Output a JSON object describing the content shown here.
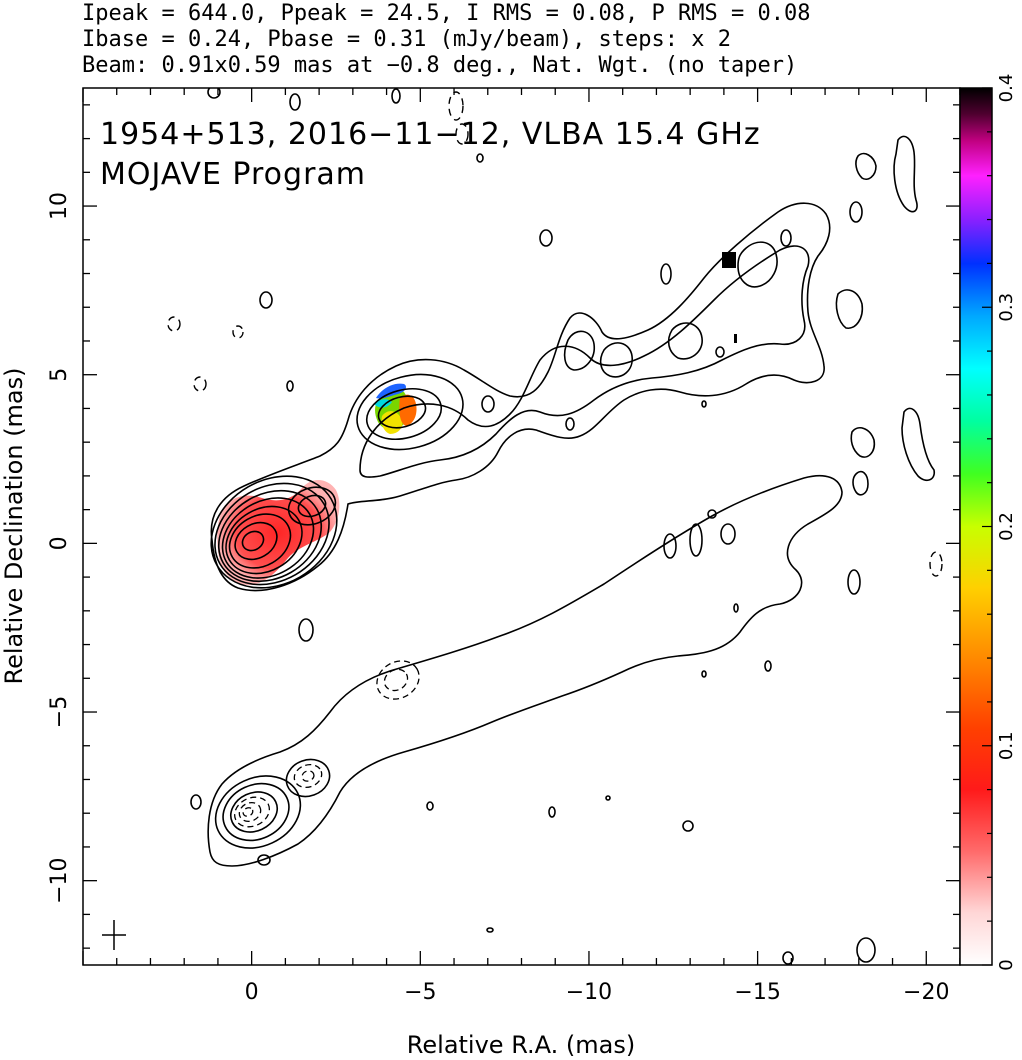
{
  "header": {
    "line1": "Ipeak = 644.0, Ppeak = 24.5, I RMS = 0.08, P RMS = 0.08",
    "line2": "Ibase = 0.24, Pbase = 0.31 (mJy/beam), steps: x 2",
    "line3": "Beam: 0.91x0.59 mas at −0.8 deg., Nat. Wgt. (no taper)"
  },
  "chart_data": {
    "type": "contour",
    "annotation_line1": "1954+513, 2016−11−12, VLBA 15.4 GHz",
    "annotation_line2": "MOJAVE Program",
    "xlabel": "Relative R.A. (mas)",
    "ylabel": "Relative Declination (mas)",
    "xlim": [
      5,
      -21
    ],
    "ylim": [
      -12.5,
      13.5
    ],
    "x_ticks": [
      {
        "value": 0,
        "label": "0"
      },
      {
        "value": -5,
        "label": "−5"
      },
      {
        "value": -10,
        "label": "−10"
      },
      {
        "value": -15,
        "label": "−15"
      },
      {
        "value": -20,
        "label": "−20"
      }
    ],
    "y_ticks": [
      {
        "value": 10,
        "label": "10"
      },
      {
        "value": 5,
        "label": "5"
      },
      {
        "value": 0,
        "label": "0"
      },
      {
        "value": -5,
        "label": "−5"
      },
      {
        "value": -10,
        "label": "−10"
      }
    ],
    "colorbar": {
      "min": 0,
      "max": 0.4,
      "ticks": [
        {
          "value": 0,
          "label": "0"
        },
        {
          "value": 0.1,
          "label": "0.1"
        },
        {
          "value": 0.2,
          "label": "0.2"
        },
        {
          "value": 0.3,
          "label": "0.3"
        },
        {
          "value": 0.4,
          "label": "0.4"
        }
      ]
    },
    "images": [
      {
        "name": "upper",
        "core": [
          0,
          0
        ],
        "features": [
          {
            "x": 0,
            "y": 0,
            "flux_mJy": 644.0
          },
          {
            "x": -1.7,
            "y": 1.2
          },
          {
            "x": -4.6,
            "y": 3.8
          },
          {
            "x": -14.2,
            "y": 8.0
          }
        ]
      },
      {
        "name": "lower",
        "core": [
          0,
          -8
        ],
        "features": [
          {
            "x": 0,
            "y": -8
          },
          {
            "x": -1.7,
            "y": -6.9
          },
          {
            "x": -4.3,
            "y": -4.2
          }
        ]
      }
    ],
    "beam_marker": {
      "x": 4,
      "y": -11.6
    }
  }
}
